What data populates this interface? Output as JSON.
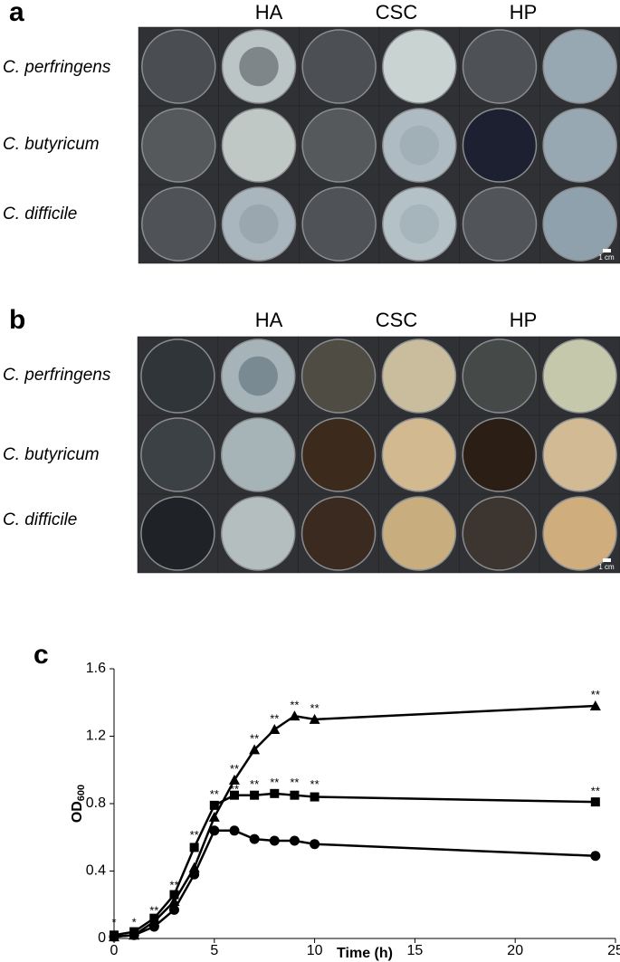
{
  "panel_a": {
    "label": "a",
    "columns": [
      "HA",
      "CSC",
      "HP"
    ],
    "rows": [
      "C. perfringens",
      "C. butyricum",
      "C. difficile"
    ],
    "scale_bar": "1 cm"
  },
  "panel_b": {
    "label": "b",
    "columns": [
      "HA",
      "CSC",
      "HP"
    ],
    "rows": [
      "C. perfringens",
      "C. butyricum",
      "C. difficile"
    ],
    "scale_bar": "1 cm"
  },
  "chart_data": {
    "type": "line",
    "label": "c",
    "x_label": "Time (h)",
    "y_label": "OD",
    "y_label_sub": "600",
    "x": [
      0,
      1,
      2,
      3,
      4,
      5,
      6,
      7,
      8,
      9,
      10,
      24
    ],
    "series": [
      {
        "marker": "triangle",
        "color": "#000000",
        "values": [
          0.01,
          0.02,
          0.1,
          0.22,
          0.42,
          0.72,
          0.94,
          1.12,
          1.24,
          1.32,
          1.3,
          1.38
        ]
      },
      {
        "marker": "square",
        "color": "#000000",
        "values": [
          0.02,
          0.04,
          0.12,
          0.26,
          0.54,
          0.79,
          0.85,
          0.85,
          0.86,
          0.85,
          0.84,
          0.81
        ]
      },
      {
        "marker": "circle",
        "color": "#000000",
        "values": [
          0.01,
          0.02,
          0.07,
          0.17,
          0.38,
          0.64,
          0.64,
          0.59,
          0.58,
          0.58,
          0.56,
          0.49
        ]
      }
    ],
    "xlim": [
      0,
      25
    ],
    "ylim": [
      0,
      1.6
    ],
    "xticks": [
      0,
      5,
      10,
      15,
      20,
      25
    ],
    "yticks": [
      0,
      0.4,
      0.8,
      1.2,
      1.6
    ],
    "annotations": [
      {
        "text": "*",
        "x": 0,
        "y": 0.09
      },
      {
        "text": "*",
        "x": 1,
        "y": 0.09
      },
      {
        "text": "**",
        "x": 2,
        "y": 0.16
      },
      {
        "text": "**",
        "x": 3,
        "y": 0.31
      },
      {
        "text": "**",
        "x": 4,
        "y": 0.61
      },
      {
        "text": "**",
        "x": 5,
        "y": 0.85
      },
      {
        "text": "**",
        "x": 5,
        "y": 0.77
      },
      {
        "text": "**",
        "x": 6,
        "y": 1.0
      },
      {
        "text": "**",
        "x": 6,
        "y": 0.88
      },
      {
        "text": "**",
        "x": 7,
        "y": 1.18
      },
      {
        "text": "**",
        "x": 7,
        "y": 0.91
      },
      {
        "text": "**",
        "x": 8,
        "y": 1.3
      },
      {
        "text": "**",
        "x": 8,
        "y": 0.92
      },
      {
        "text": "**",
        "x": 9,
        "y": 1.38
      },
      {
        "text": "**",
        "x": 9,
        "y": 0.92
      },
      {
        "text": "**",
        "x": 10,
        "y": 1.36
      },
      {
        "text": "**",
        "x": 10,
        "y": 0.91
      },
      {
        "text": "**",
        "x": 24,
        "y": 1.44
      },
      {
        "text": "**",
        "x": 24,
        "y": 0.87
      }
    ]
  }
}
